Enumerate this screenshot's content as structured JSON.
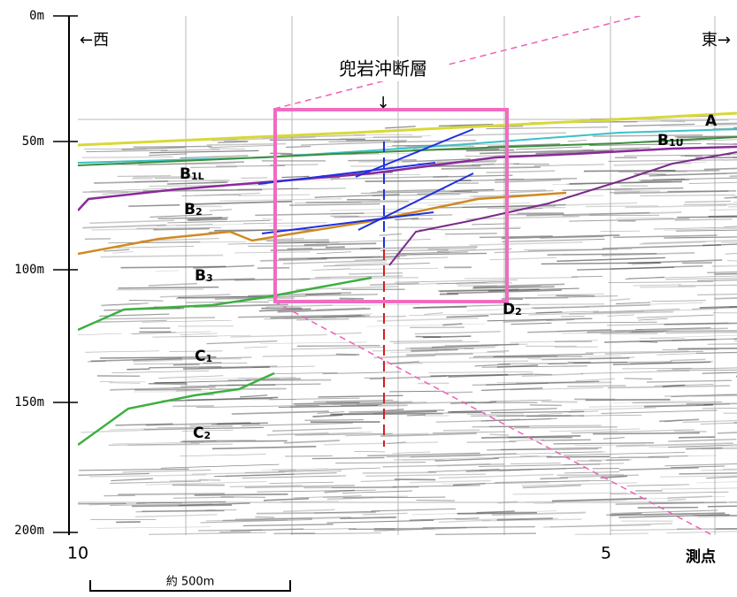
{
  "depth_axis": {
    "labels": [
      "0m",
      "50m",
      "100m",
      "150m",
      "200m"
    ]
  },
  "station_axis": {
    "labels": [
      "10",
      "5"
    ],
    "title": "測点"
  },
  "directions": {
    "west": "←西",
    "east": "東→"
  },
  "fault": {
    "label": "兜岩沖断層",
    "arrow": "↓"
  },
  "layers": [
    {
      "letter": "A",
      "sub": ""
    },
    {
      "letter": "B",
      "sub": "1U"
    },
    {
      "letter": "B",
      "sub": "1L"
    },
    {
      "letter": "B",
      "sub": "2"
    },
    {
      "letter": "B",
      "sub": "3"
    },
    {
      "letter": "D",
      "sub": "2"
    },
    {
      "letter": "C",
      "sub": "1"
    },
    {
      "letter": "C",
      "sub": "2"
    }
  ],
  "scale_bar": {
    "label": "約 500m"
  }
}
